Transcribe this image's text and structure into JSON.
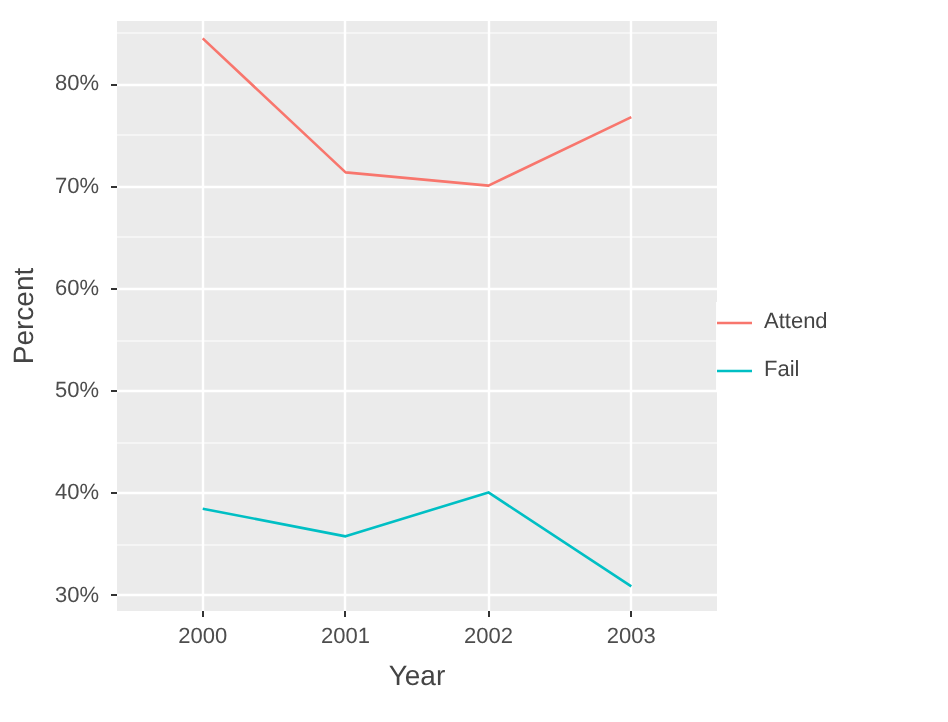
{
  "chart_data": {
    "type": "line",
    "xlabel": "Year",
    "ylabel": "Percent",
    "categories": [
      "2000",
      "2001",
      "2002",
      "2003"
    ],
    "series": [
      {
        "name": "Attend",
        "color": "#f8766d",
        "values": [
          84.5,
          71.4,
          70.1,
          76.8
        ]
      },
      {
        "name": "Fail",
        "color": "#00bfc4",
        "values": [
          38.5,
          35.8,
          40.1,
          30.9
        ]
      }
    ],
    "ylim": [
      28.5,
      86.2
    ],
    "yticks": [
      {
        "value": 30,
        "label": "30%"
      },
      {
        "value": 40,
        "label": "40%"
      },
      {
        "value": 50,
        "label": "50%"
      },
      {
        "value": 60,
        "label": "60%"
      },
      {
        "value": 70,
        "label": "70%"
      },
      {
        "value": 80,
        "label": "80%"
      }
    ],
    "grid": true,
    "legend": "right",
    "line_style": "solid",
    "marker": "none"
  }
}
